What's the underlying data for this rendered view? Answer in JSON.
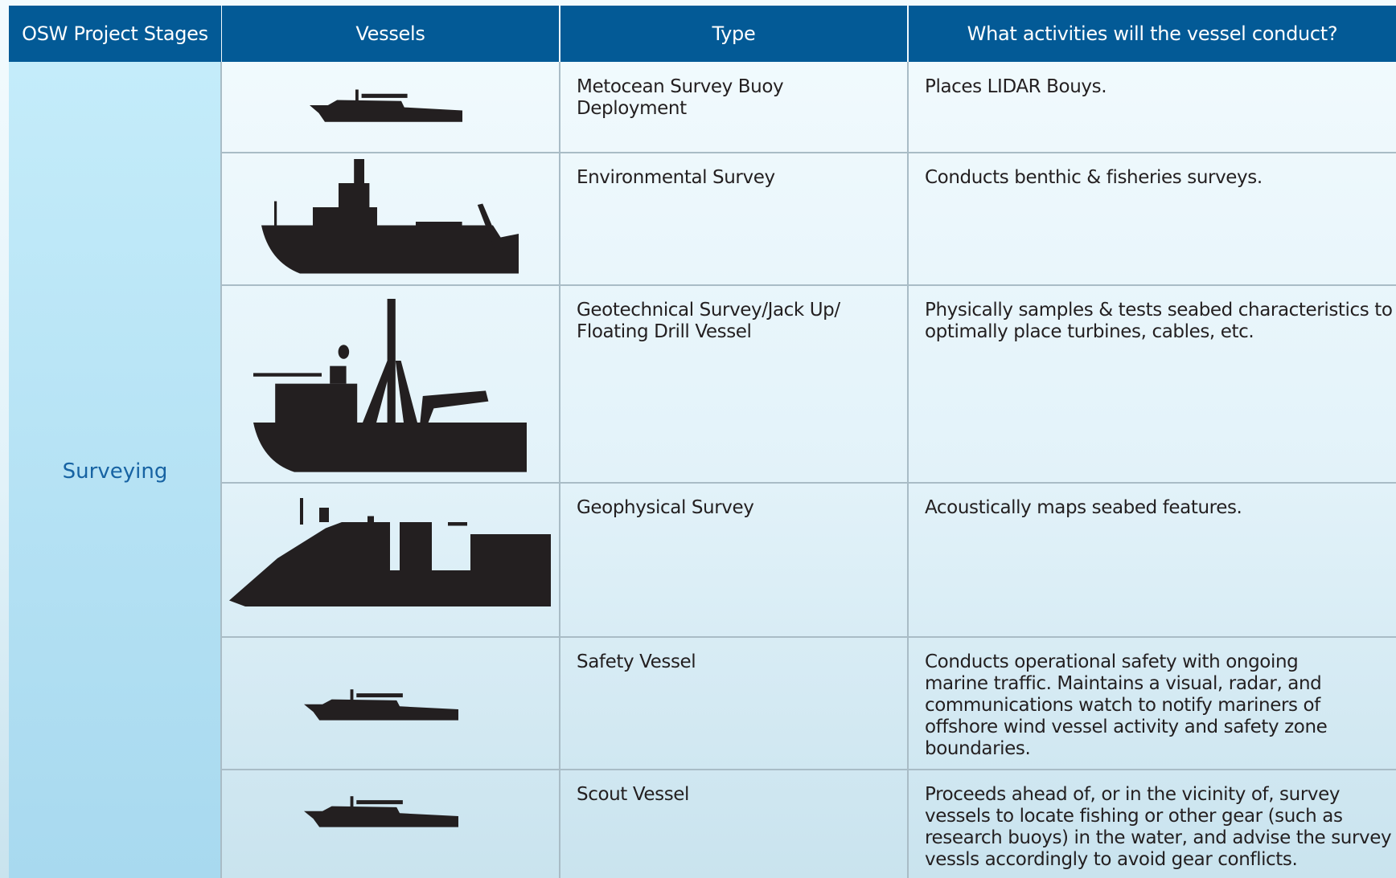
{
  "header": {
    "columns": [
      "OSW Project Stages",
      "Vessels",
      "Type",
      "What activities will the vessel conduct?"
    ]
  },
  "stage": "Surveying",
  "rows": [
    {
      "type": [
        "Metocean Survey Buoy",
        "Deployment"
      ],
      "activity": [
        "Places LIDAR Bouys."
      ]
    },
    {
      "type": [
        "Environmental Survey"
      ],
      "activity": [
        "Conducts benthic & fisheries surveys."
      ]
    },
    {
      "type": [
        "Geotechnical Survey/Jack Up/",
        "Floating Drill Vessel"
      ],
      "activity": [
        "Physically samples & tests seabed characteristics to",
        "optimally place turbines, cables, etc."
      ]
    },
    {
      "type": [
        "Geophysical Survey"
      ],
      "activity": [
        "Acoustically maps seabed features."
      ]
    },
    {
      "type": [
        "Safety Vessel"
      ],
      "activity": [
        "Conducts operational safety with ongoing",
        "marine traffic. Maintains a visual, radar, and",
        "communications watch to notify mariners of",
        "offshore wind vessel activity and safety zone",
        "boundaries."
      ]
    },
    {
      "type": [
        "Scout Vessel"
      ],
      "activity": [
        "Proceeds ahead of, or in the vicinity of, survey",
        "vessels to locate fishing or other gear (such as",
        "research buoys) in the water, and advise the survey",
        "vessls accordingly to avoid gear conflicts."
      ]
    }
  ]
}
